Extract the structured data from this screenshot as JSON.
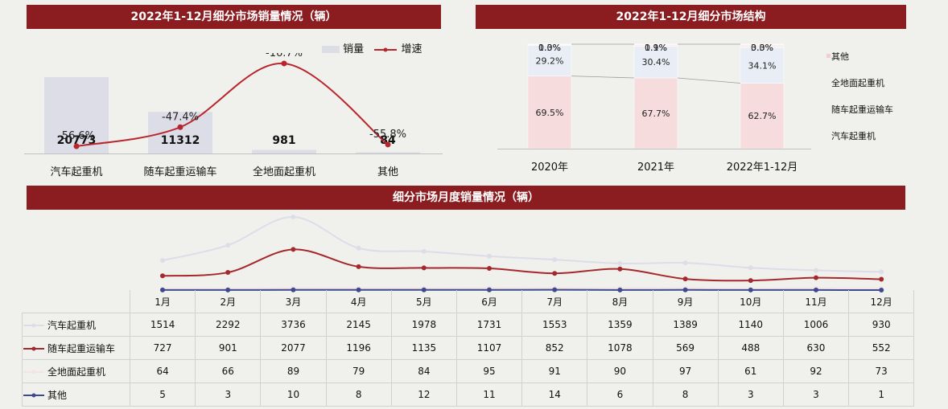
{
  "panel1": {
    "title": "2022年1-12月细分市场销量情况（辆）",
    "legend_volume": "销量",
    "legend_growth": "增速"
  },
  "panel2": {
    "title": "2022年1-12月细分市场结构",
    "legend": [
      "其他",
      "全地面起重机",
      "随车起重运输车",
      "汽车起重机"
    ]
  },
  "panel3": {
    "title": "细分市场月度销量情况（辆）"
  },
  "colors": {
    "banner": "#8b1c20",
    "bar": "#dcdde6",
    "growth_line": "#b8252b",
    "truck_crane": "#f6dcdc",
    "loader_crane": "#e9edf6",
    "all_terrain": "#fbeef0",
    "series_truck": "#dcdde9",
    "series_loader": "#a5282d",
    "series_allterrain": "#f2e3e5",
    "series_other": "#3e4a8c"
  },
  "chart_data": [
    {
      "type": "bar",
      "title": "2022年1-12月细分市场销量情况（辆）",
      "categories": [
        "汽车起重机",
        "随车起重运输车",
        "全地面起重机",
        "其他"
      ],
      "series": [
        {
          "name": "销量",
          "values": [
            20773,
            11312,
            981,
            84
          ],
          "labels": [
            "20773",
            "11312",
            "981",
            "84"
          ]
        },
        {
          "name": "增速",
          "type": "line",
          "values": [
            -56.6,
            -47.4,
            -16.7,
            -55.8
          ],
          "labels": [
            "-56.6%",
            "-47.4%",
            "-16.7%",
            "-55.8%"
          ]
        }
      ]
    },
    {
      "type": "bar",
      "stacked": true,
      "percent": true,
      "title": "2022年1-12月细分市场结构",
      "categories": [
        "2020年",
        "2021年",
        "2022年1-12月"
      ],
      "series": [
        {
          "name": "汽车起重机",
          "values": [
            69.5,
            67.7,
            62.7
          ],
          "labels": [
            "69.5%",
            "67.7%",
            "62.7%"
          ]
        },
        {
          "name": "随车起重运输车",
          "values": [
            29.2,
            30.4,
            34.1
          ],
          "labels": [
            "29.2%",
            "30.4%",
            "34.1%"
          ]
        },
        {
          "name": "全地面起重机",
          "values": [
            1.3,
            1.9,
            3.0
          ],
          "labels": [
            "1.3%",
            "1.9%",
            "3.0%"
          ]
        },
        {
          "name": "其他",
          "values": [
            0.0,
            0.1,
            0.3
          ],
          "labels": [
            "0.0%",
            "0.1%",
            "0.3%"
          ]
        }
      ],
      "legend": "right"
    },
    {
      "type": "line",
      "title": "细分市场月度销量情况（辆）",
      "categories": [
        "1月",
        "2月",
        "3月",
        "4月",
        "5月",
        "6月",
        "7月",
        "8月",
        "9月",
        "10月",
        "11月",
        "12月"
      ],
      "series": [
        {
          "name": "汽车起重机",
          "values": [
            1514,
            2292,
            3736,
            2145,
            1978,
            1731,
            1553,
            1359,
            1389,
            1140,
            1006,
            930
          ]
        },
        {
          "name": "随车起重运输车",
          "values": [
            727,
            901,
            2077,
            1196,
            1135,
            1107,
            852,
            1078,
            569,
            488,
            630,
            552
          ]
        },
        {
          "name": "全地面起重机",
          "values": [
            64,
            66,
            89,
            79,
            84,
            95,
            91,
            90,
            97,
            61,
            92,
            73
          ]
        },
        {
          "name": "其他",
          "values": [
            5,
            3,
            10,
            8,
            12,
            11,
            14,
            6,
            8,
            3,
            3,
            1
          ]
        }
      ],
      "ylim": [
        0,
        4200
      ]
    }
  ]
}
